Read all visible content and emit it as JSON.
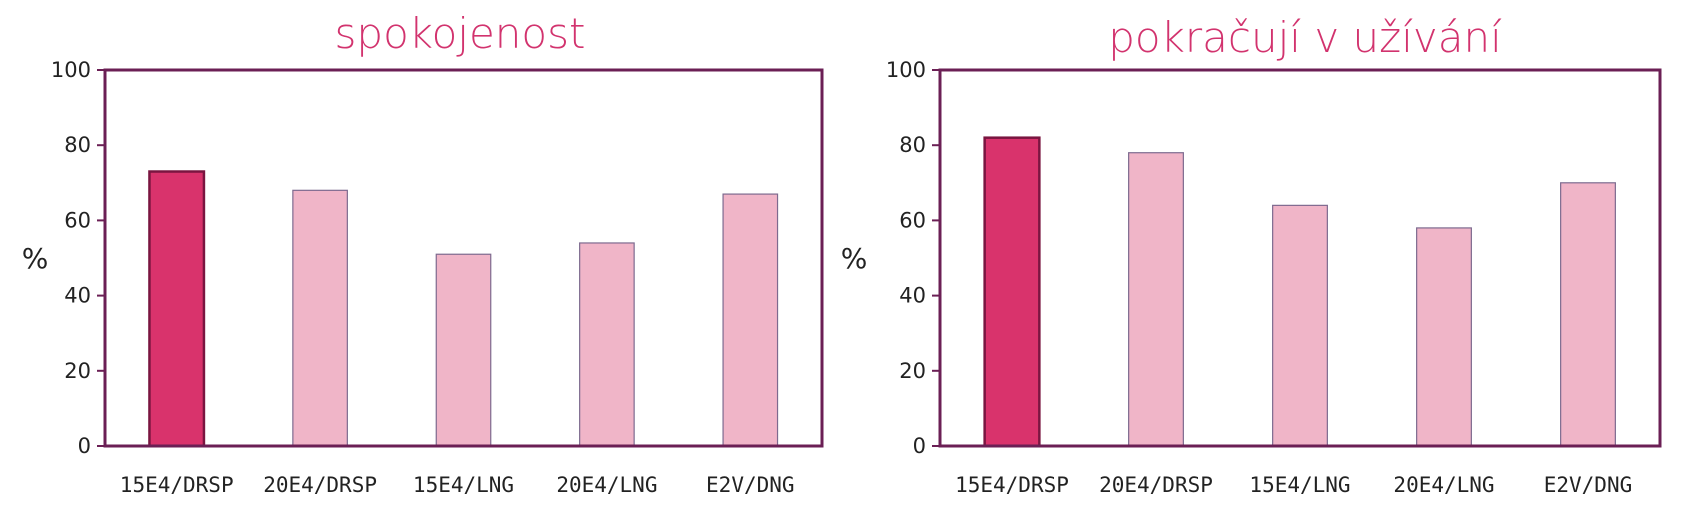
{
  "colors": {
    "frame": "#6b1f55",
    "highlight_bar": "#d9336c",
    "highlight_stroke": "#7a1540",
    "bar": "#f0b5c8",
    "bar_stroke": "#7d6a8f",
    "title": "#d2336e"
  },
  "chart_data": [
    {
      "type": "bar",
      "title": "spokojenost",
      "ylabel": "%",
      "ylim": [
        0,
        100
      ],
      "yticks": [
        0,
        20,
        40,
        60,
        80,
        100
      ],
      "categories": [
        "15E4/DRSP",
        "20E4/DRSP",
        "15E4/LNG",
        "20E4/LNG",
        "E2V/DNG"
      ],
      "values": [
        73,
        68,
        51,
        54,
        67
      ],
      "highlight_index": 0,
      "grid": false,
      "legend": "none"
    },
    {
      "type": "bar",
      "title": "pokračují v užívání",
      "ylabel": "%",
      "ylim": [
        0,
        100
      ],
      "yticks": [
        0,
        20,
        40,
        60,
        80,
        100
      ],
      "categories": [
        "15E4/DRSP",
        "20E4/DRSP",
        "15E4/LNG",
        "20E4/LNG",
        "E2V/DNG"
      ],
      "values": [
        82,
        78,
        64,
        58,
        70
      ],
      "highlight_index": 0,
      "grid": false,
      "legend": "none"
    }
  ]
}
